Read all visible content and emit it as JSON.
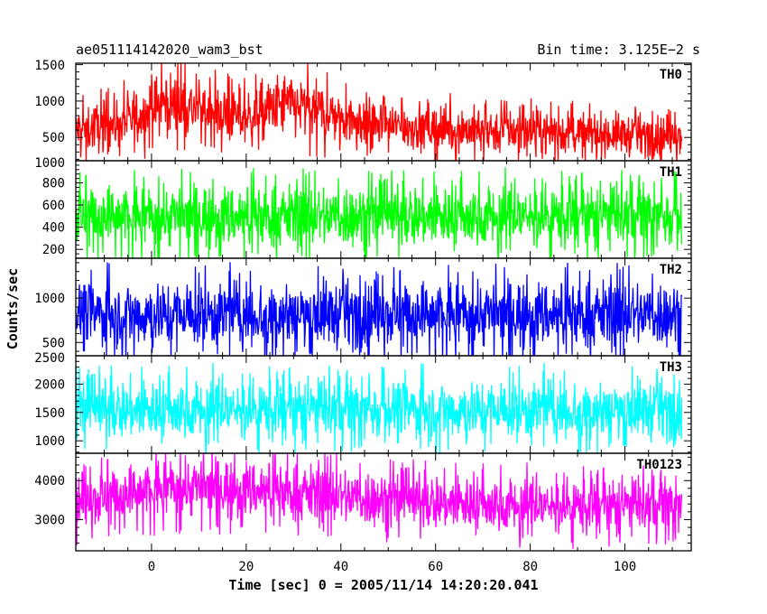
{
  "chart_data": {
    "type": "line",
    "title_left": "ae051114142020_wam3_bst",
    "title_right": "Bin time: 3.125E−2 s",
    "xlabel": "Time [sec] 0 = 2005/11/14 14:20:20.041",
    "ylabel": "Counts/sec",
    "xlim": [
      -16,
      114
    ],
    "x_ticks": [
      0,
      20,
      40,
      60,
      80,
      100
    ],
    "x_tick_labels": [
      "0",
      "20",
      "40",
      "60",
      "80",
      "100"
    ],
    "data_x_range": [
      -16,
      112
    ],
    "panels": [
      {
        "name": "TH0",
        "color": "#ff0000",
        "ylim": [
          180,
          1520
        ],
        "y_ticks": [
          500,
          1000,
          1500
        ],
        "y_tick_labels": [
          "500",
          "1000",
          "1500"
        ],
        "profile": [
          {
            "x": -16,
            "mean": 600,
            "amp": 380
          },
          {
            "x": -5,
            "mean": 720,
            "amp": 430
          },
          {
            "x": 3,
            "mean": 980,
            "amp": 520
          },
          {
            "x": 12,
            "mean": 850,
            "amp": 450
          },
          {
            "x": 20,
            "mean": 760,
            "amp": 420
          },
          {
            "x": 28,
            "mean": 960,
            "amp": 520
          },
          {
            "x": 38,
            "mean": 820,
            "amp": 450
          },
          {
            "x": 50,
            "mean": 660,
            "amp": 380
          },
          {
            "x": 70,
            "mean": 600,
            "amp": 360
          },
          {
            "x": 90,
            "mean": 560,
            "amp": 340
          },
          {
            "x": 112,
            "mean": 520,
            "amp": 330
          }
        ]
      },
      {
        "name": "TH1",
        "color": "#00ff00",
        "ylim": [
          120,
          1000
        ],
        "y_ticks": [
          200,
          400,
          600,
          800,
          1000
        ],
        "y_tick_labels": [
          "200",
          "400",
          "600",
          "800",
          "1000"
        ],
        "profile": [
          {
            "x": -16,
            "mean": 500,
            "amp": 330
          },
          {
            "x": 112,
            "mean": 500,
            "amp": 330
          }
        ]
      },
      {
        "name": "TH2",
        "color": "#0000ff",
        "ylim": [
          350,
          1450
        ],
        "y_ticks": [
          500,
          1000
        ],
        "y_tick_labels": [
          "500",
          "1000"
        ],
        "profile": [
          {
            "x": -16,
            "mean": 820,
            "amp": 440
          },
          {
            "x": 112,
            "mean": 820,
            "amp": 440
          }
        ]
      },
      {
        "name": "TH3",
        "color": "#00ffff",
        "ylim": [
          780,
          2500
        ],
        "y_ticks": [
          1000,
          1500,
          2000,
          2500
        ],
        "y_tick_labels": [
          "1000",
          "1500",
          "2000",
          "2500"
        ],
        "profile": [
          {
            "x": -16,
            "mean": 1550,
            "amp": 620
          },
          {
            "x": 112,
            "mean": 1550,
            "amp": 620
          }
        ]
      },
      {
        "name": "TH0123",
        "color": "#ff00ff",
        "ylim": [
          2200,
          4700
        ],
        "y_ticks": [
          3000,
          4000
        ],
        "y_tick_labels": [
          "3000",
          "4000"
        ],
        "profile": [
          {
            "x": -16,
            "mean": 3450,
            "amp": 850
          },
          {
            "x": 5,
            "mean": 3850,
            "amp": 900
          },
          {
            "x": 25,
            "mean": 3750,
            "amp": 880
          },
          {
            "x": 50,
            "mean": 3500,
            "amp": 850
          },
          {
            "x": 80,
            "mean": 3350,
            "amp": 830
          },
          {
            "x": 112,
            "mean": 3350,
            "amp": 820
          }
        ]
      }
    ]
  }
}
